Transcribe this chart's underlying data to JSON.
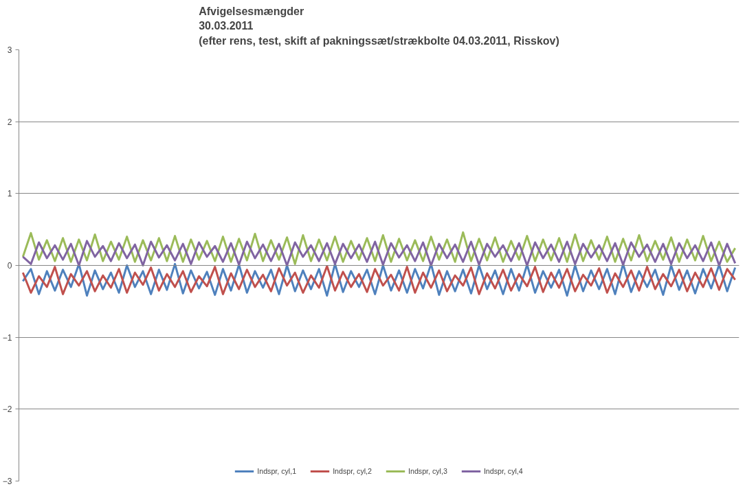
{
  "chart_data": {
    "type": "line",
    "title": "Afvigelsesmængder\n30.03.2011\n(efter rens, test, skift af pakningssæt/strækbolte 04.03.2011, Risskov)",
    "categories": [
      null,
      null,
      null,
      null,
      null,
      null,
      null,
      null,
      null,
      null,
      null,
      null,
      null,
      null,
      null,
      null,
      null,
      null,
      null,
      null,
      null,
      null,
      null,
      null,
      null,
      null,
      null,
      null,
      null,
      null,
      null,
      null,
      null,
      null,
      null,
      null,
      null,
      null,
      null,
      null,
      null,
      null,
      null,
      null,
      null,
      null,
      null,
      null,
      null,
      null,
      null,
      null,
      null,
      null,
      null,
      null,
      null,
      null,
      null,
      null,
      null,
      null,
      null,
      null,
      null,
      null,
      null,
      null,
      null,
      null,
      null,
      null,
      null,
      null,
      null,
      null,
      null,
      null,
      null,
      null,
      null,
      null,
      null,
      null,
      null,
      null,
      null,
      null,
      null,
      null
    ],
    "series": [
      {
        "name": "Indspr, cyl,1",
        "color": "#4f81bd",
        "values": [
          -0.22,
          -0.05,
          -0.4,
          -0.08,
          -0.35,
          -0.06,
          -0.3,
          0.02,
          -0.42,
          -0.07,
          -0.33,
          -0.1,
          -0.38,
          0.0,
          -0.3,
          -0.08,
          -0.4,
          -0.06,
          -0.34,
          0.02,
          -0.39,
          -0.07,
          -0.32,
          -0.09,
          -0.41,
          -0.05,
          -0.35,
          0.01,
          -0.38,
          -0.08,
          -0.31,
          -0.06,
          -0.4,
          0.0,
          -0.36,
          -0.07,
          -0.33,
          -0.05,
          -0.42,
          0.02,
          -0.37,
          -0.08,
          -0.3,
          -0.06,
          -0.4,
          0.0,
          -0.35,
          -0.07,
          -0.38,
          -0.05,
          -0.32,
          0.02,
          -0.41,
          -0.08,
          -0.36,
          -0.06,
          -0.39,
          0.0,
          -0.33,
          -0.07,
          -0.4,
          -0.05,
          -0.35,
          0.01,
          -0.38,
          -0.08,
          -0.31,
          -0.06,
          -0.42,
          0.0,
          -0.36,
          -0.07,
          -0.33,
          -0.05,
          -0.4,
          0.02,
          -0.37,
          -0.08,
          -0.3,
          -0.06,
          -0.41,
          0.0,
          -0.34,
          -0.07,
          -0.39,
          -0.05,
          -0.32,
          0.01,
          -0.36,
          -0.03
        ]
      },
      {
        "name": "Indspr, cyl,2",
        "color": "#c0504d",
        "values": [
          -0.1,
          -0.38,
          -0.15,
          -0.3,
          -0.02,
          -0.4,
          -0.12,
          -0.28,
          -0.08,
          -0.36,
          -0.14,
          -0.31,
          -0.05,
          -0.38,
          -0.1,
          -0.27,
          -0.03,
          -0.35,
          -0.12,
          -0.3,
          -0.08,
          -0.37,
          -0.15,
          -0.29,
          -0.02,
          -0.4,
          -0.11,
          -0.33,
          -0.06,
          -0.3,
          -0.13,
          -0.36,
          -0.04,
          -0.28,
          -0.1,
          -0.38,
          -0.14,
          -0.31,
          -0.01,
          -0.35,
          -0.09,
          -0.3,
          -0.12,
          -0.37,
          -0.05,
          -0.28,
          -0.13,
          -0.35,
          -0.02,
          -0.38,
          -0.1,
          -0.31,
          -0.07,
          -0.36,
          -0.14,
          -0.28,
          -0.03,
          -0.4,
          -0.11,
          -0.32,
          -0.06,
          -0.35,
          -0.12,
          -0.29,
          -0.02,
          -0.37,
          -0.1,
          -0.31,
          -0.05,
          -0.36,
          -0.13,
          -0.28,
          -0.04,
          -0.38,
          -0.11,
          -0.3,
          -0.07,
          -0.35,
          -0.02,
          -0.33,
          -0.12,
          -0.29,
          -0.06,
          -0.36,
          -0.1,
          -0.3,
          -0.04,
          -0.34,
          -0.05,
          -0.2
        ]
      },
      {
        "name": "Indspr, cyl,3",
        "color": "#9bbb59",
        "values": [
          0.12,
          0.45,
          0.08,
          0.35,
          0.06,
          0.38,
          0.05,
          0.36,
          0.07,
          0.43,
          0.06,
          0.33,
          0.08,
          0.4,
          0.05,
          0.35,
          0.07,
          0.38,
          0.06,
          0.41,
          0.05,
          0.36,
          0.08,
          0.34,
          0.06,
          0.4,
          0.05,
          0.37,
          0.07,
          0.44,
          0.06,
          0.35,
          0.08,
          0.39,
          0.02,
          0.42,
          0.06,
          0.36,
          0.07,
          0.4,
          0.05,
          0.34,
          0.08,
          0.38,
          0.06,
          0.42,
          0.05,
          0.37,
          0.07,
          0.35,
          0.06,
          0.4,
          0.08,
          0.36,
          0.05,
          0.46,
          0.06,
          0.37,
          0.07,
          0.39,
          0.05,
          0.34,
          0.08,
          0.41,
          0.06,
          0.36,
          0.07,
          0.38,
          0.05,
          0.43,
          0.06,
          0.35,
          0.08,
          0.4,
          0.05,
          0.37,
          0.07,
          0.42,
          0.06,
          0.34,
          0.08,
          0.39,
          0.05,
          0.36,
          0.07,
          0.41,
          0.06,
          0.33,
          0.05,
          0.24
        ]
      },
      {
        "name": "Indspr, cyl,4",
        "color": "#8064a2",
        "values": [
          0.12,
          0.02,
          0.32,
          0.1,
          0.28,
          0.08,
          0.3,
          0.0,
          0.34,
          0.12,
          0.27,
          0.06,
          0.31,
          0.1,
          0.29,
          0.0,
          0.33,
          0.11,
          0.28,
          0.07,
          0.3,
          0.02,
          0.32,
          0.12,
          0.27,
          0.05,
          0.31,
          0.01,
          0.33,
          0.1,
          0.29,
          0.06,
          0.3,
          0.0,
          0.32,
          0.12,
          0.28,
          0.06,
          0.31,
          0.02,
          0.3,
          0.1,
          0.29,
          0.05,
          0.33,
          0.01,
          0.31,
          0.11,
          0.28,
          0.06,
          0.32,
          0.0,
          0.3,
          0.1,
          0.29,
          0.05,
          0.33,
          0.01,
          0.3,
          0.12,
          0.28,
          0.06,
          0.31,
          0.0,
          0.32,
          0.1,
          0.29,
          0.05,
          0.33,
          0.02,
          0.3,
          0.11,
          0.28,
          0.06,
          0.31,
          0.01,
          0.32,
          0.12,
          0.29,
          0.05,
          0.3,
          0.02,
          0.31,
          0.1,
          0.28,
          0.06,
          0.32,
          0.0,
          0.3,
          0.03
        ]
      }
    ],
    "ylim": [
      -3,
      3
    ],
    "yticks": [
      -3,
      -2,
      -1,
      0,
      1,
      2,
      3
    ],
    "grid": "y",
    "legend": "bottom",
    "marker": "none",
    "line_style": "solid"
  }
}
